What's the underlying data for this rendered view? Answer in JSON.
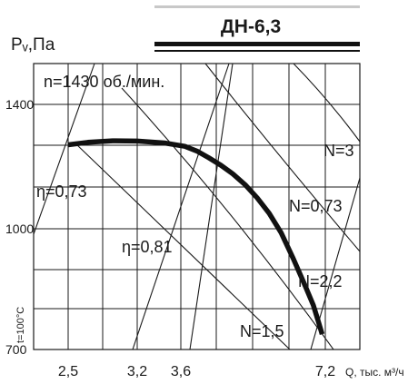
{
  "chart_data": {
    "type": "line",
    "title": "ДН-6,3",
    "ylabel": "Pᵥ,Па",
    "xlabel": "Q, тыс. м³/ч",
    "side_label": "t=100°C",
    "x_ticks": [
      "2,5",
      "3,2",
      "3,6",
      "7,2"
    ],
    "x_tick_values": [
      2.5,
      3.2,
      3.6,
      7.2
    ],
    "y_ticks": [
      "700",
      "1000",
      "1400"
    ],
    "y_tick_values": [
      700,
      1000,
      1400
    ],
    "annotations": {
      "rpm": "n=1430 об./мин.",
      "eta_073": "η=0,73",
      "eta_081": "η=0,81",
      "eta_073_right": "=0,73",
      "power_3": "N=3",
      "power_073": "N",
      "power_22": "N=2,2",
      "power_15": "N=1,5"
    },
    "series": [
      {
        "name": "",
        "x": [
          2.5,
          2.7,
          2.95,
          3.2,
          3.45,
          3.7,
          4.0,
          4.3,
          4.6,
          4.9,
          5.2,
          5.5,
          5.8,
          6.1,
          6.4,
          6.7,
          6.9,
          7.02,
          7.12
        ],
        "y": [
          1270,
          1278,
          1283,
          1282,
          1276,
          1265,
          1250,
          1228,
          1204,
          1176,
          1142,
          1100,
          1050,
          990,
          926,
          858,
          810,
          772,
          738
        ]
      }
    ],
    "grid": true,
    "colors": {
      "line": "#111111",
      "grid": "#1a1a1a",
      "header_bar": "#c8c8c8"
    }
  }
}
